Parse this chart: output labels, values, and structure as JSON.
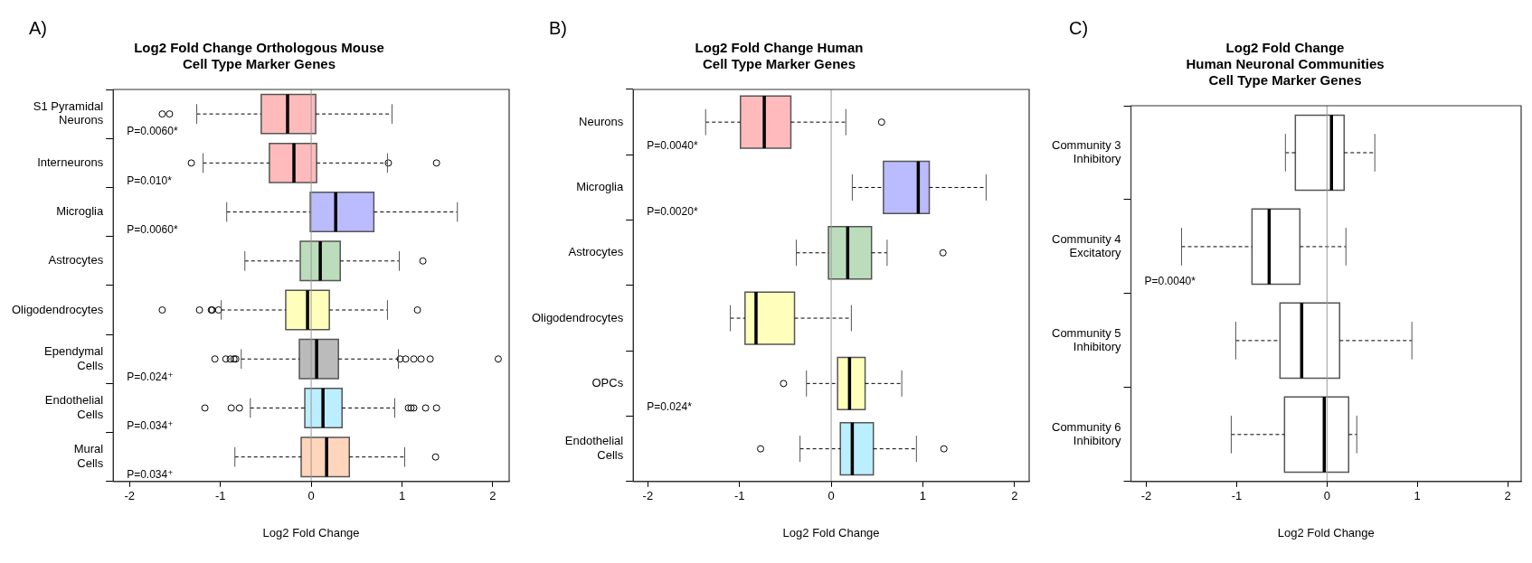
{
  "chart_data": [
    {
      "type": "box",
      "title": "Log2 Fold Change Orthologous Mouse\nCell Type Marker Genes",
      "xlabel": "Log2 Fold Change",
      "categories": [
        "S1 Pyramidal\nNeurons",
        "Interneurons",
        "Microglia",
        "Astrocytes",
        "Oligodendrocytes",
        "Ependymal\nCells",
        "Endothelial\nCells",
        "Mural\nCells"
      ],
      "colors": [
        "#ffbbbb",
        "#ffbbbb",
        "#bbbbff",
        "#bbddbb",
        "#ffffbb",
        "#bbbbbb",
        "#bbeeff",
        "#ffd5bb"
      ],
      "boxes": [
        {
          "low": -1.26,
          "q1": -0.55,
          "median": -0.26,
          "q3": 0.05,
          "high": 0.89,
          "outliers": [
            -1.64,
            -1.56
          ]
        },
        {
          "low": -1.19,
          "q1": -0.46,
          "median": -0.19,
          "q3": 0.06,
          "high": 0.84,
          "outliers": [
            -1.32,
            0.85,
            1.38
          ]
        },
        {
          "low": -0.93,
          "q1": -0.01,
          "median": 0.27,
          "q3": 0.69,
          "high": 1.61
        },
        {
          "low": -0.73,
          "q1": -0.12,
          "median": 0.1,
          "q3": 0.32,
          "high": 0.97,
          "outliers": [
            1.23
          ]
        },
        {
          "low": -0.99,
          "q1": -0.28,
          "median": -0.04,
          "q3": 0.2,
          "high": 0.84,
          "outliers": [
            -1.64,
            -1.23,
            -1.1,
            -1.09,
            -1.02,
            1.17
          ]
        },
        {
          "low": -0.77,
          "q1": -0.13,
          "median": 0.06,
          "q3": 0.3,
          "high": 0.96,
          "outliers": [
            -1.06,
            -0.94,
            -0.89,
            -0.85,
            -0.83,
            0.98,
            1.04,
            1.13,
            1.21,
            1.31,
            2.06
          ]
        },
        {
          "low": -0.67,
          "q1": -0.07,
          "median": 0.13,
          "q3": 0.34,
          "high": 0.92,
          "outliers": [
            -1.17,
            -0.88,
            -0.79,
            1.07,
            1.1,
            1.13,
            1.26,
            1.38
          ]
        },
        {
          "low": -0.84,
          "q1": -0.11,
          "median": 0.17,
          "q3": 0.42,
          "high": 1.03,
          "outliers": [
            1.37
          ]
        }
      ],
      "orientation": "horizontal",
      "xlim": [
        -2.18,
        2.18
      ],
      "xticks": [
        -2,
        -1,
        0,
        1,
        2
      ],
      "marker": "circle",
      "ref_lines": [
        {
          "axis": "x",
          "value": 0,
          "color": "#999999"
        }
      ],
      "annotations": [
        "A)",
        "P=0.0060*",
        "P=0.010*",
        "P=0.0060*",
        "P=0.024⁺",
        "P=0.034⁺",
        "P=0.034⁺"
      ]
    },
    {
      "type": "box",
      "title": "Log2 Fold Change Human\nCell Type Marker Genes",
      "xlabel": "Log2 Fold Change",
      "categories": [
        "Neurons",
        "Microglia",
        "Astrocytes",
        "Oligodendrocytes",
        "OPCs",
        "Endothelial\nCells"
      ],
      "colors": [
        "#ffbbbb",
        "#bbbbff",
        "#bbddbb",
        "#ffffbb",
        "#ffffbb",
        "#bbeeff"
      ],
      "boxes": [
        {
          "low": -1.37,
          "q1": -0.99,
          "median": -0.73,
          "q3": -0.44,
          "high": 0.16,
          "outliers": [
            0.55
          ]
        },
        {
          "low": 0.23,
          "q1": 0.57,
          "median": 0.95,
          "q3": 1.07,
          "high": 1.69
        },
        {
          "low": -0.38,
          "q1": -0.03,
          "median": 0.18,
          "q3": 0.44,
          "high": 0.61,
          "outliers": [
            1.22
          ]
        },
        {
          "low": -1.1,
          "q1": -0.94,
          "median": -0.82,
          "q3": -0.4,
          "high": 0.22
        },
        {
          "low": -0.27,
          "q1": 0.07,
          "median": 0.2,
          "q3": 0.37,
          "high": 0.77,
          "outliers": [
            -0.52
          ]
        },
        {
          "low": -0.34,
          "q1": 0.1,
          "median": 0.23,
          "q3": 0.46,
          "high": 0.93,
          "outliers": [
            -0.77,
            1.23
          ]
        }
      ],
      "orientation": "horizontal",
      "xlim": [
        -2.16,
        2.16
      ],
      "xticks": [
        -2,
        -1,
        0,
        1,
        2
      ],
      "marker": "circle",
      "ref_lines": [
        {
          "axis": "x",
          "value": 0,
          "color": "#999999"
        }
      ],
      "annotations": [
        "B)",
        "P=0.0040*",
        "P=0.0020*",
        "P=0.024*"
      ]
    },
    {
      "type": "box",
      "title": "Log2 Fold Change\nHuman Neuronal Communities\nCell Type Marker Genes",
      "xlabel": "Log2 Fold Change",
      "categories": [
        "Community 3\nInhibitory",
        "Community 4\nExcitatory",
        "Community 5\nInhibitory",
        "Community 6\nInhibitory"
      ],
      "colors": [
        "#ffffff",
        "#ffffff",
        "#ffffff",
        "#ffffff"
      ],
      "boxes": [
        {
          "low": -0.46,
          "q1": -0.35,
          "median": 0.05,
          "q3": 0.19,
          "high": 0.53
        },
        {
          "low": -1.61,
          "q1": -0.83,
          "median": -0.64,
          "q3": -0.3,
          "high": 0.21
        },
        {
          "low": -1.01,
          "q1": -0.52,
          "median": -0.28,
          "q3": 0.14,
          "high": 0.94
        },
        {
          "low": -1.06,
          "q1": -0.47,
          "median": -0.03,
          "q3": 0.24,
          "high": 0.33
        }
      ],
      "orientation": "horizontal",
      "xlim": [
        -2.17,
        2.15
      ],
      "xticks": [
        -2,
        -1,
        0,
        1,
        2
      ],
      "ref_lines": [
        {
          "axis": "x",
          "value": 0,
          "color": "#999999"
        }
      ],
      "annotations": [
        "C)",
        "P=0.0040*"
      ]
    }
  ]
}
